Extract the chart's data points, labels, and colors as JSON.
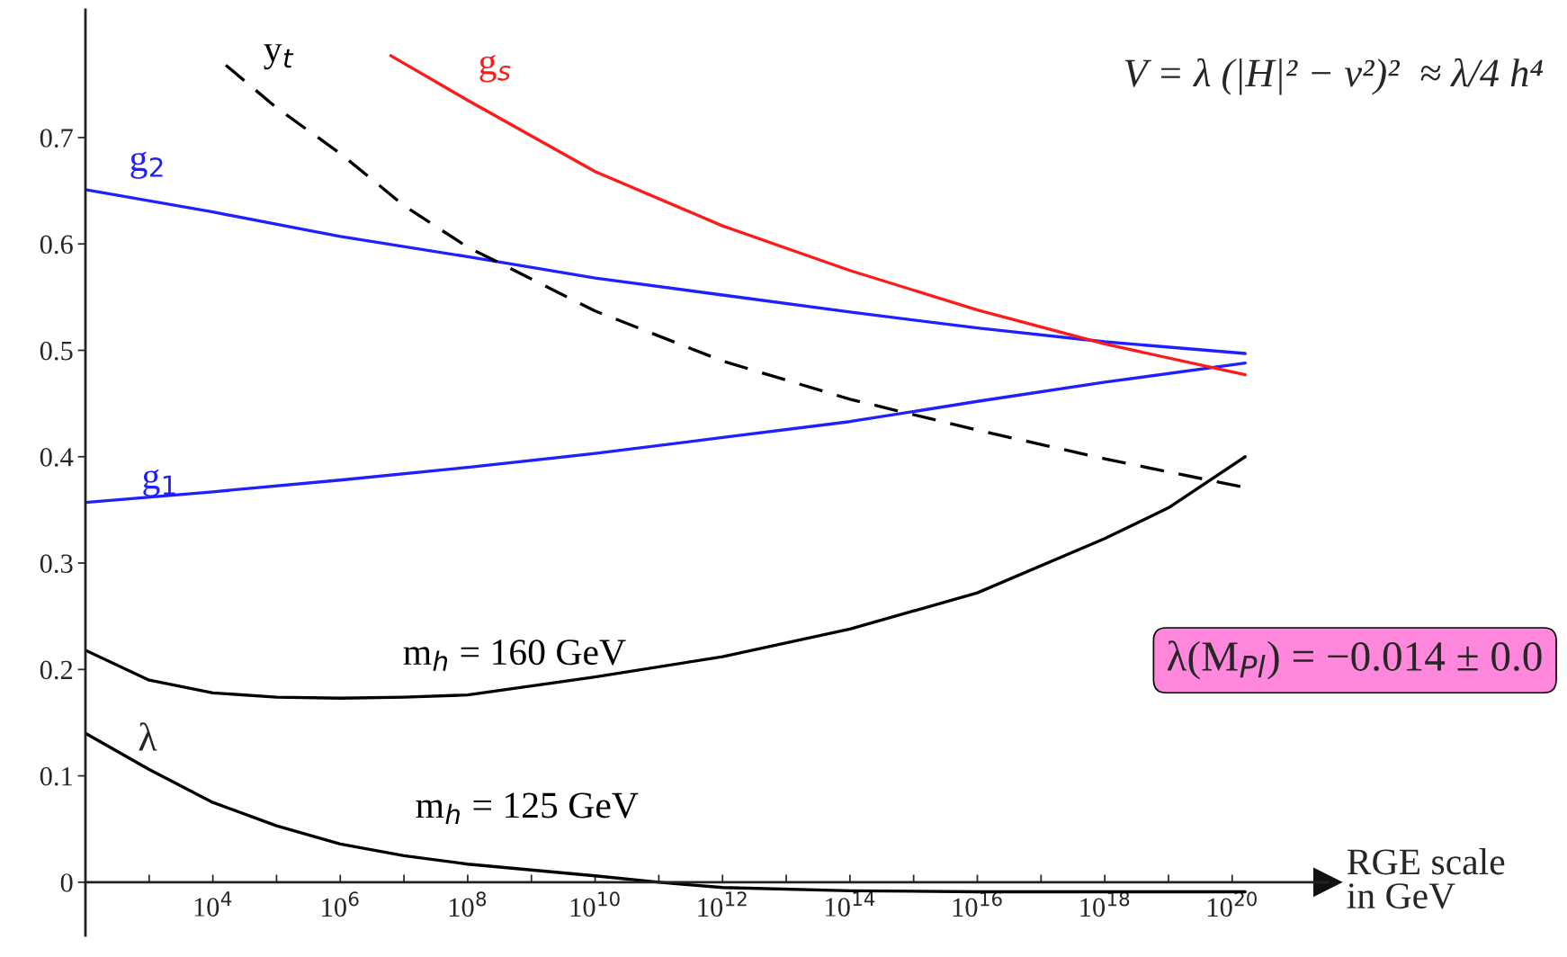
{
  "chart_data": {
    "type": "line",
    "log": "x",
    "grid": false,
    "legend": false,
    "xlabel": "RGE scale\nin GeV",
    "xlim": [
      100,
      3.16e+21
    ],
    "ylim": [
      -0.05,
      0.82
    ],
    "xticks": [
      {
        "value": 1000,
        "label": null
      },
      {
        "value": 10000,
        "label": "10$^{4}$"
      },
      {
        "value": 100000,
        "label": null
      },
      {
        "value": 1000000.0,
        "label": "10$^{6}$"
      },
      {
        "value": 10000000.0,
        "label": null
      },
      {
        "value": 100000000.0,
        "label": "10$^{8}$"
      },
      {
        "value": 1000000000.0,
        "label": null
      },
      {
        "value": 10000000000.0,
        "label": "10$^{10}$"
      },
      {
        "value": 100000000000.0,
        "label": null
      },
      {
        "value": 1000000000000.0,
        "label": "10$^{12}$"
      },
      {
        "value": 10000000000000.0,
        "label": null
      },
      {
        "value": 100000000000000.0,
        "label": "10$^{14}$"
      },
      {
        "value": 1000000000000000.0,
        "label": null
      },
      {
        "value": 1e+16,
        "label": "10$^{16}$"
      },
      {
        "value": 1e+17,
        "label": null
      },
      {
        "value": 1e+18,
        "label": "10$^{18}$"
      },
      {
        "value": 1e+19,
        "label": null
      },
      {
        "value": 1e+20,
        "label": "10$^{20}$"
      }
    ],
    "yticks": [
      {
        "value": 0,
        "label": "0"
      },
      0.1,
      0.2,
      0.3,
      0.4,
      0.5,
      0.6,
      0.7
    ],
    "series": [
      {
        "name": "g$_{2}$",
        "color": "#1f1fff",
        "x": [
          100,
          10000,
          1000000.0,
          100000000.0,
          10000000000.0,
          1000000000000.0,
          100000000000000.0,
          1e+16,
          1e+18,
          1.6e+20
        ],
        "values": [
          0.651,
          0.63,
          0.607,
          0.588,
          0.568,
          0.552,
          0.536,
          0.521,
          0.508,
          0.497
        ]
      },
      {
        "name": "g$_{1}$",
        "color": "#1f1fff",
        "x": [
          100,
          10000,
          1000000.0,
          100000000.0,
          10000000000.0,
          1000000000000.0,
          100000000000000.0,
          1e+16,
          1e+18,
          1.6e+20
        ],
        "values": [
          0.357,
          0.367,
          0.378,
          0.39,
          0.403,
          0.418,
          0.433,
          0.452,
          0.47,
          0.488
        ]
      },
      {
        "name": "g$_{s}$",
        "color": "#ff1a1a",
        "x": [
          6200000.0,
          100000000.0,
          10000000000.0,
          1000000000000.0,
          100000000000000.0,
          1e+16,
          1e+18,
          1.6e+20
        ],
        "values": [
          0.777,
          0.735,
          0.668,
          0.617,
          0.575,
          0.538,
          0.506,
          0.477
        ]
      },
      {
        "name": "y$_{t}$",
        "color": "#000000",
        "line_style": "dashed",
        "x": [
          16000.0,
          100000.0,
          1000000.0,
          10000000.0,
          100000000.0,
          10000000000.0,
          1000000000000.0,
          100000000000000.0,
          1e+16,
          1e+18,
          1.6e+20
        ],
        "values": [
          0.768,
          0.728,
          0.685,
          0.636,
          0.597,
          0.537,
          0.49,
          0.454,
          0.425,
          0.398,
          0.371
        ]
      },
      {
        "name": "m$_{h}$ = 160 GeV",
        "color": "#000000",
        "x": [
          100,
          1000,
          10000,
          100000,
          1000000.0,
          10000000.0,
          100000000.0,
          10000000000.0,
          1000000000000.0,
          100000000000000.0,
          1e+16,
          1e+18,
          1e+19,
          1.6e+20
        ],
        "values": [
          0.218,
          0.19,
          0.178,
          0.174,
          0.173,
          0.174,
          0.176,
          0.193,
          0.212,
          0.238,
          0.272,
          0.323,
          0.352,
          0.4
        ]
      },
      {
        "name": "m$_{h}$ = 125 GeV",
        "color": "#000000",
        "x": [
          100,
          1000,
          10000,
          100000,
          1000000.0,
          10000000.0,
          100000000.0,
          10000000000.0,
          100000000000.0,
          1000000000000.0,
          100000000000000.0,
          1e+16,
          1e+18,
          1.6e+20
        ],
        "values": [
          0.14,
          0.106,
          0.075,
          0.053,
          0.036,
          0.025,
          0.017,
          0.006,
          0.0,
          -0.005,
          -0.008,
          -0.009,
          -0.009,
          -0.009
        ]
      }
    ],
    "annotations": [
      "λ",
      "V = λ (|H|² − v²)²  ≈ λ/4 h⁴",
      "λ(M$_{Pl}$) = −0.014 ± 0.0"
    ]
  }
}
